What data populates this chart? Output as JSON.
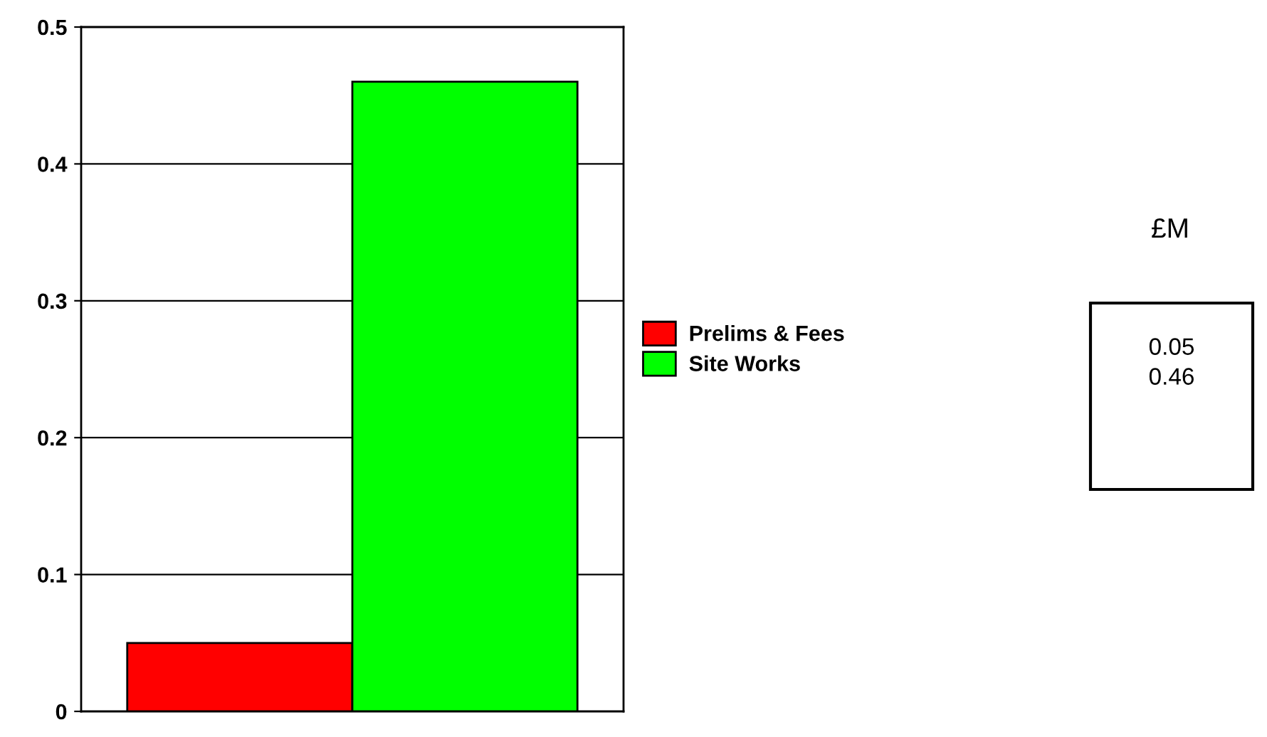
{
  "chart_data": {
    "type": "bar",
    "categories": [
      null
    ],
    "series": [
      {
        "name": "Prelims & Fees",
        "color": "#ff0000",
        "values": [
          0.05
        ]
      },
      {
        "name": "Site Works",
        "color": "#00ff00",
        "values": [
          0.46
        ]
      }
    ],
    "ylim": [
      0,
      0.5
    ],
    "yticks": [
      0,
      0.1,
      0.2,
      0.3,
      0.4,
      0.5
    ],
    "grid": "y",
    "legend": "right",
    "annotations": [
      "£M",
      "0.05",
      "0.46"
    ]
  }
}
